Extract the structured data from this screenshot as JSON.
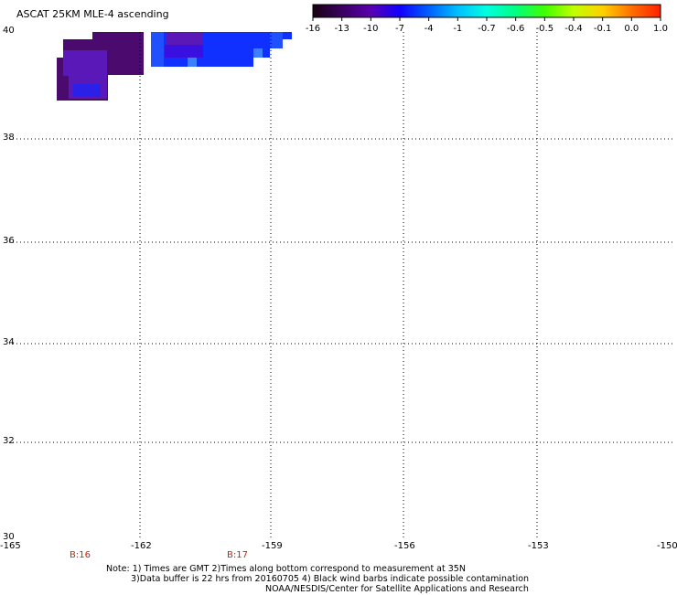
{
  "title": "ASCAT 25KM MLE-4 ascending",
  "colorbar": {
    "labels": [
      "-16",
      "-13",
      "-10",
      "-7",
      "-4",
      "-1",
      "-0.7",
      "-0.6",
      "-0.5",
      "-0.4",
      "-0.1",
      "0.0",
      "1.0"
    ],
    "colors": [
      "#1a0010",
      "#3a0060",
      "#5a00b0",
      "#1000ff",
      "#0060ff",
      "#00c0ff",
      "#00ffe0",
      "#00ff80",
      "#40ff00",
      "#c0ff00",
      "#ffd000",
      "#ff7000",
      "#ff2000"
    ]
  },
  "map": {
    "lon_labels": [
      "-165",
      "-162",
      "-159",
      "-156",
      "-153",
      "-150"
    ],
    "lat_labels": [
      "40",
      "38",
      "36",
      "34",
      "32",
      "30"
    ],
    "lon_range": [
      -165,
      -150
    ],
    "lat_range": [
      30,
      40
    ],
    "grid": "dotted"
  },
  "swath_time_labels": [
    "B:16",
    "B:17"
  ],
  "notes": {
    "line1": "Note: 1) Times are GMT 2)Times along bottom correspond to measurement at 35N",
    "line2": "3)Data buffer is 22 hrs from 20160705 4) Black wind barbs indicate possible contamination",
    "line3": "NOAA/NESDIS/Center for Satellite Applications and Research"
  },
  "data_colors": {
    "dark_purple": "#4a0a6e",
    "purple": "#5a18b8",
    "violet": "#3a10e0",
    "blue": "#1030ff",
    "mid_blue": "#2050ff",
    "light_blue": "#3a80ff"
  }
}
